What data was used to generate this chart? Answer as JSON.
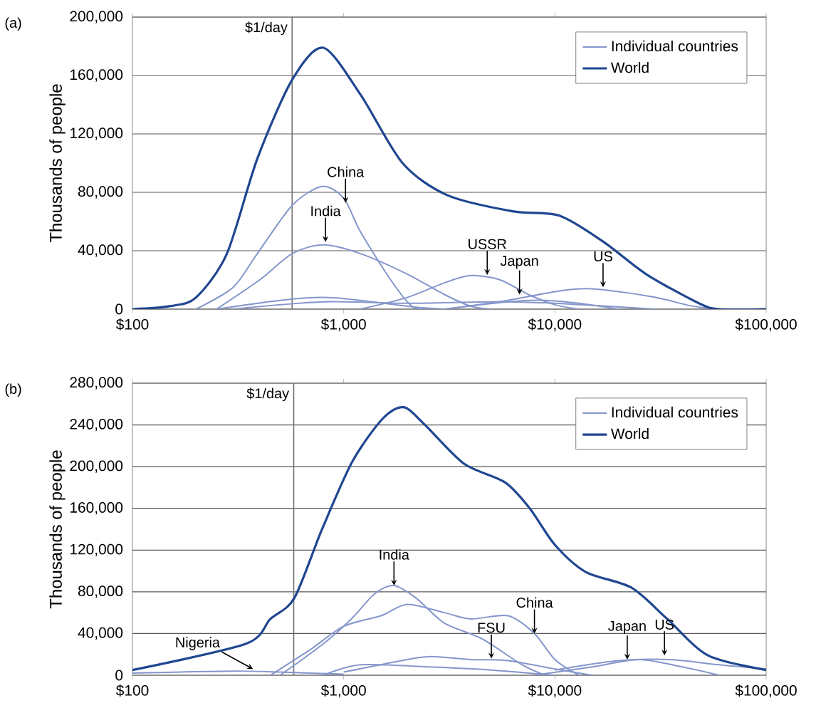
{
  "chart_data": [
    {
      "type": "line",
      "title": "(a)",
      "ylabel": "Thousands of people",
      "log": "x",
      "grid": "y",
      "legend": "top right",
      "xlim": [
        100,
        100000
      ],
      "xticks": [
        {
          "value": 100,
          "label": "$100"
        },
        {
          "value": 1000,
          "label": "$1,000"
        },
        {
          "value": 10000,
          "label": "$10,000"
        },
        {
          "value": 100000,
          "label": "$100,000"
        }
      ],
      "ylim": [
        0,
        200000
      ],
      "yticks": [
        {
          "value": 0,
          "label": "0"
        },
        {
          "value": 40000,
          "label": "40,000"
        },
        {
          "value": 80000,
          "label": "80,000"
        },
        {
          "value": 120000,
          "label": "120,000"
        },
        {
          "value": 160000,
          "label": "160,000"
        },
        {
          "value": 200000,
          "label": "200,000"
        }
      ],
      "ref_lines": [
        {
          "axis": "x",
          "value": 570,
          "label": "$1/day",
          "color": "#707070"
        }
      ],
      "annotations": [
        {
          "text": "China",
          "x": 1020,
          "y": 72800
        },
        {
          "text": "India",
          "x": 820,
          "y": 46000
        },
        {
          "text": "USSR",
          "x": 4780,
          "y": 23400
        },
        {
          "text": "Japan",
          "x": 6800,
          "y": 10000
        },
        {
          "text": "US",
          "x": 16900,
          "y": 15000
        }
      ],
      "series": [
        {
          "name": "Individual countries",
          "color": "#8596cc",
          "x": [
            200,
            300,
            390,
            570,
            790,
            1000,
            1200,
            1670,
            2100,
            2500
          ],
          "values": [
            0,
            15000,
            38000,
            71000,
            84000,
            76000,
            53000,
            20000,
            2000,
            0
          ]
        },
        {
          "color": "#8596cc",
          "x": [
            250,
            400,
            570,
            800,
            1200,
            2000,
            3000,
            4000,
            5000
          ],
          "values": [
            0,
            20000,
            38000,
            44000,
            38000,
            24000,
            10000,
            2000,
            0
          ]
        },
        {
          "color": "#8596cc",
          "x": [
            1200,
            2000,
            3000,
            4000,
            5500,
            7500,
            10000,
            13000
          ],
          "values": [
            0,
            8000,
            18000,
            23000,
            20000,
            10000,
            3000,
            0
          ]
        },
        {
          "color": "#8596cc",
          "x": [
            3000,
            6000,
            9000,
            13000,
            20000
          ],
          "values": [
            0,
            5000,
            6000,
            4000,
            0
          ]
        },
        {
          "color": "#8596cc",
          "x": [
            3000,
            6000,
            10000,
            14000,
            20000,
            30000,
            45000,
            60000
          ],
          "values": [
            0,
            6000,
            12000,
            14000,
            12000,
            8000,
            2000,
            0
          ]
        },
        {
          "color": "#8596cc",
          "x": [
            250,
            500,
            800,
            1200,
            2000,
            3000
          ],
          "values": [
            0,
            6000,
            8000,
            6000,
            2000,
            0
          ]
        },
        {
          "color": "#8596cc",
          "x": [
            300,
            800,
            2000,
            5000,
            10000,
            30000
          ],
          "values": [
            0,
            5000,
            4000,
            5000,
            4000,
            0
          ]
        },
        {
          "name": "World",
          "color": "#1f4690",
          "x": [
            100,
            150,
            200,
            280,
            390,
            570,
            800,
            1200,
            1900,
            3100,
            6300,
            10500,
            17000,
            27000,
            48000,
            60000,
            100000
          ],
          "values": [
            0,
            2000,
            8000,
            38000,
            103000,
            157000,
            179000,
            147000,
            100000,
            78000,
            67000,
            64000,
            46000,
            24000,
            4000,
            0,
            0
          ]
        }
      ]
    },
    {
      "type": "line",
      "title": "(b)",
      "ylabel": "Thousands of people",
      "log": "x",
      "grid": "y",
      "legend": "top right",
      "xlim": [
        100,
        100000
      ],
      "xticks": [
        {
          "value": 100,
          "label": "$100"
        },
        {
          "value": 1000,
          "label": "$1,000"
        },
        {
          "value": 10000,
          "label": "$10,000"
        },
        {
          "value": 100000,
          "label": "$100,000"
        }
      ],
      "ylim": [
        0,
        280000
      ],
      "yticks": [
        {
          "value": 0,
          "label": "0"
        },
        {
          "value": 40000,
          "label": "40,000"
        },
        {
          "value": 80000,
          "label": "80,000"
        },
        {
          "value": 120000,
          "label": "120,000"
        },
        {
          "value": 160000,
          "label": "160,000"
        },
        {
          "value": 200000,
          "label": "200,000"
        },
        {
          "value": 240000,
          "label": "240,000"
        },
        {
          "value": 280000,
          "label": "280,000"
        }
      ],
      "ref_lines": [
        {
          "axis": "x",
          "value": 580,
          "label": "$1/day",
          "color": "#707070"
        }
      ],
      "annotations": [
        {
          "text": "India",
          "x": 1730,
          "y": 86000
        },
        {
          "text": "China",
          "x": 8000,
          "y": 40000
        },
        {
          "text": "FSU",
          "x": 5000,
          "y": 16000
        },
        {
          "text": "Nigeria",
          "x": 372,
          "y": 6000
        },
        {
          "text": "Japan",
          "x": 22000,
          "y": 15000
        },
        {
          "text": "US",
          "x": 33000,
          "y": 19000
        }
      ],
      "series": [
        {
          "name": "Individual countries",
          "color": "#8596cc",
          "x": [
            500,
            800,
            1100,
            1400,
            1730,
            2200,
            3000,
            4500,
            7000,
            9000
          ],
          "values": [
            0,
            30000,
            55000,
            78000,
            86000,
            74000,
            50000,
            35000,
            10000,
            0
          ]
        },
        {
          "color": "#8596cc",
          "x": [
            450,
            700,
            1000,
            1500,
            2000,
            3000,
            4000,
            6000,
            8000,
            10000,
            13000
          ],
          "values": [
            0,
            25000,
            47000,
            57000,
            68000,
            60000,
            54000,
            57000,
            40000,
            15000,
            0
          ]
        },
        {
          "color": "#8596cc",
          "x": [
            1000,
            2000,
            2600,
            4000,
            6000,
            10000,
            15000
          ],
          "values": [
            3000,
            15000,
            18000,
            15000,
            14000,
            6000,
            0
          ]
        },
        {
          "color": "#8596cc",
          "x": [
            100,
            300,
            500,
            1000
          ],
          "values": [
            2000,
            4000,
            3000,
            1000
          ]
        },
        {
          "color": "#8596cc",
          "x": [
            8000,
            15000,
            25000,
            40000,
            60000
          ],
          "values": [
            0,
            8000,
            15000,
            8000,
            0
          ]
        },
        {
          "color": "#8596cc",
          "x": [
            10000,
            20000,
            35000,
            60000,
            100000
          ],
          "values": [
            5000,
            14000,
            15000,
            10000,
            6000
          ]
        },
        {
          "color": "#8596cc",
          "x": [
            800,
            1200,
            2500,
            5000,
            10000
          ],
          "values": [
            0,
            10000,
            8000,
            5000,
            0
          ]
        },
        {
          "name": "World",
          "color": "#1f4690",
          "x": [
            100,
            343,
            450,
            584,
            790,
            1100,
            1530,
            1920,
            2400,
            3700,
            5800,
            7600,
            10000,
            14000,
            23000,
            34000,
            53000,
            100000
          ],
          "values": [
            5000,
            30000,
            54000,
            74000,
            140000,
            205000,
            246000,
            257000,
            241000,
            203000,
            185000,
            160000,
            125000,
            99000,
            84000,
            54000,
            19000,
            5000
          ]
        }
      ]
    }
  ]
}
